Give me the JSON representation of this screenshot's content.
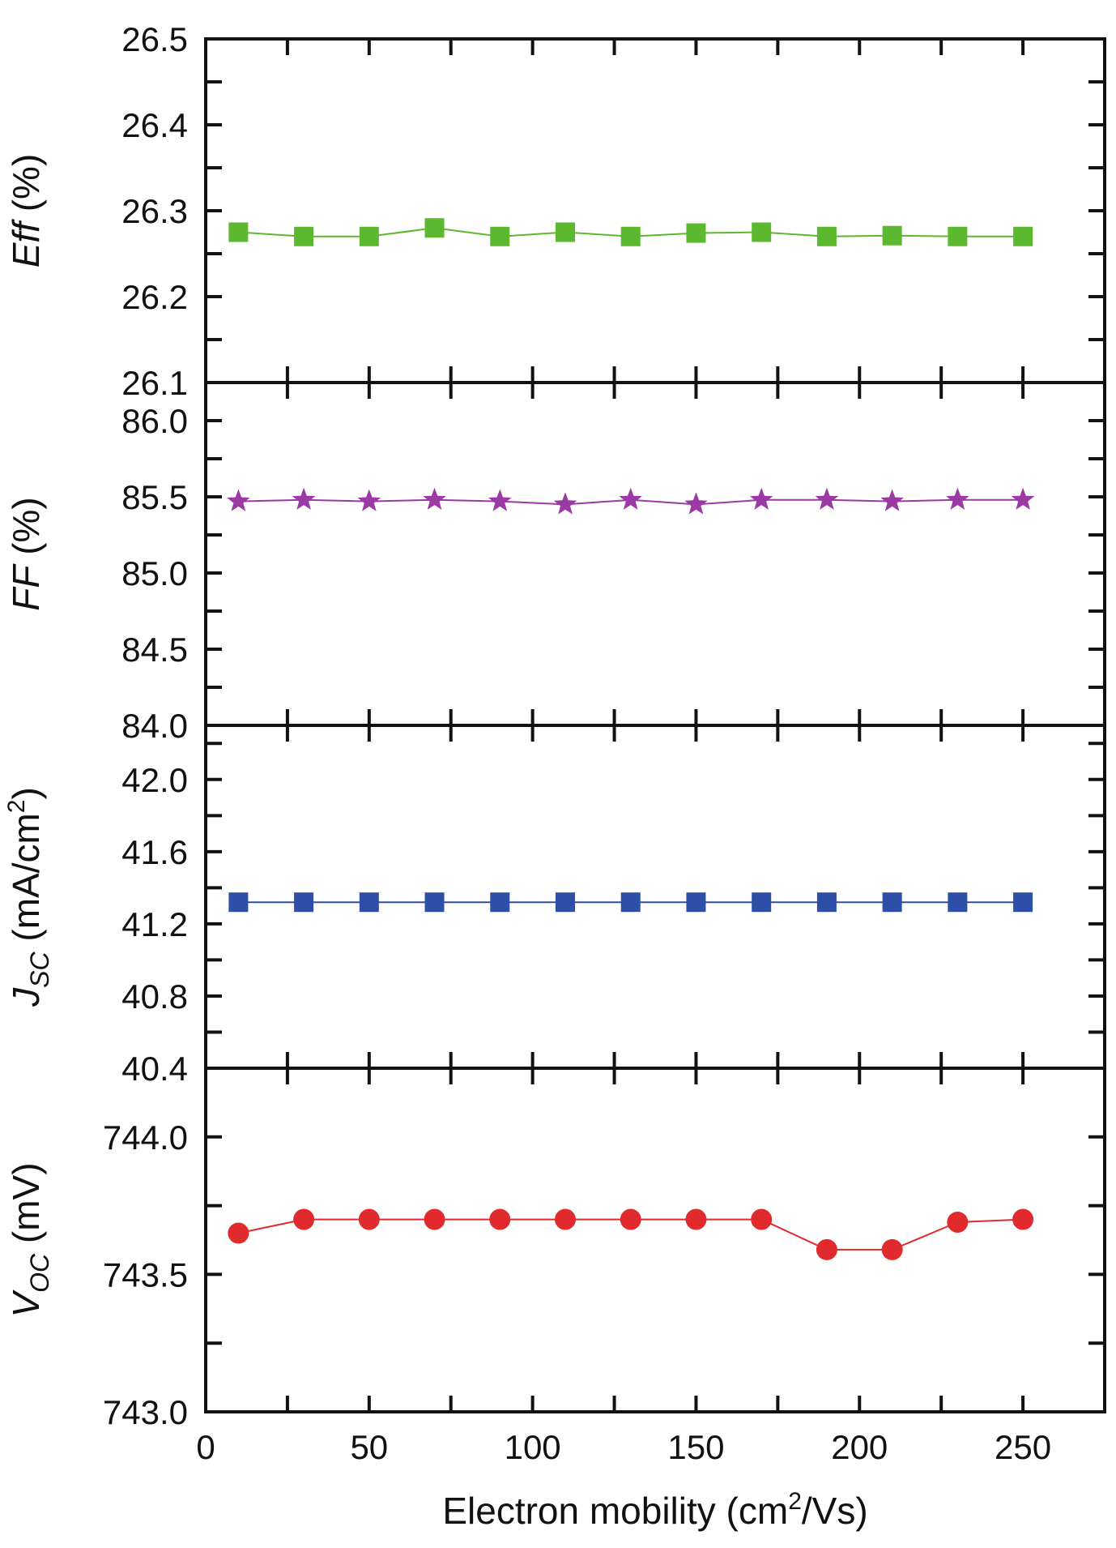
{
  "chart_data": [
    {
      "type": "line",
      "ylabel_main": "Eff",
      "ylabel_sub": "",
      "ylabel_unit": " (%)",
      "ylabel_unit_sup": "",
      "ylabel_unit_tail": "",
      "ylim": [
        26.1,
        26.5
      ],
      "yticks": [
        "26.1",
        "26.2",
        "26.3",
        "26.4",
        "26.5"
      ],
      "series": [
        {
          "marker": "square",
          "color": "#5cb82e",
          "x": [
            10,
            30,
            50,
            70,
            90,
            110,
            130,
            150,
            170,
            190,
            210,
            230,
            250
          ],
          "values": [
            26.275,
            26.27,
            26.27,
            26.28,
            26.27,
            26.275,
            26.27,
            26.274,
            26.275,
            26.27,
            26.271,
            26.27,
            26.27
          ]
        }
      ]
    },
    {
      "type": "line",
      "ylabel_main": "FF",
      "ylabel_sub": "",
      "ylabel_unit": " (%)",
      "ylabel_unit_sup": "",
      "ylabel_unit_tail": "",
      "ylim": [
        84.0,
        86.25
      ],
      "yticks": [
        "84.0",
        "84.5",
        "85.0",
        "85.5",
        "86.0"
      ],
      "series": [
        {
          "marker": "star",
          "color": "#9b3aa4",
          "x": [
            10,
            30,
            50,
            70,
            90,
            110,
            130,
            150,
            170,
            190,
            210,
            230,
            250
          ],
          "values": [
            85.47,
            85.48,
            85.47,
            85.48,
            85.47,
            85.45,
            85.48,
            85.45,
            85.48,
            85.48,
            85.47,
            85.48,
            85.48
          ]
        }
      ]
    },
    {
      "type": "line",
      "ylabel_main": "J",
      "ylabel_sub": "SC",
      "ylabel_unit": " (mA/cm",
      "ylabel_unit_sup": "2",
      "ylabel_unit_tail": ")",
      "ylim": [
        40.4,
        42.3
      ],
      "yticks": [
        "40.4",
        "40.8",
        "41.2",
        "41.6",
        "42.0"
      ],
      "series": [
        {
          "marker": "square",
          "color": "#2d4fa8",
          "x": [
            10,
            30,
            50,
            70,
            90,
            110,
            130,
            150,
            170,
            190,
            210,
            230,
            250
          ],
          "values": [
            41.32,
            41.32,
            41.32,
            41.32,
            41.32,
            41.32,
            41.32,
            41.32,
            41.32,
            41.32,
            41.32,
            41.32,
            41.32
          ]
        }
      ]
    },
    {
      "type": "line",
      "ylabel_main": "V",
      "ylabel_sub": "OC",
      "ylabel_unit": " (mV)",
      "ylabel_unit_sup": "",
      "ylabel_unit_tail": "",
      "ylim": [
        743.0,
        744.25
      ],
      "yticks": [
        "743.0",
        "743.5",
        "744.0"
      ],
      "series": [
        {
          "marker": "circle",
          "color": "#e02a2d",
          "x": [
            10,
            30,
            50,
            70,
            90,
            110,
            130,
            150,
            170,
            190,
            210,
            230,
            250
          ],
          "values": [
            743.65,
            743.7,
            743.7,
            743.7,
            743.7,
            743.7,
            743.7,
            743.7,
            743.7,
            743.59,
            743.59,
            743.69,
            743.7
          ]
        }
      ]
    }
  ],
  "x_axis": {
    "label_pre": "Electron mobility (cm",
    "label_sup": "2",
    "label_post": "/Vs)",
    "xlim": [
      0,
      275
    ],
    "ticks": [
      "0",
      "50",
      "100",
      "150",
      "200",
      "250"
    ]
  }
}
